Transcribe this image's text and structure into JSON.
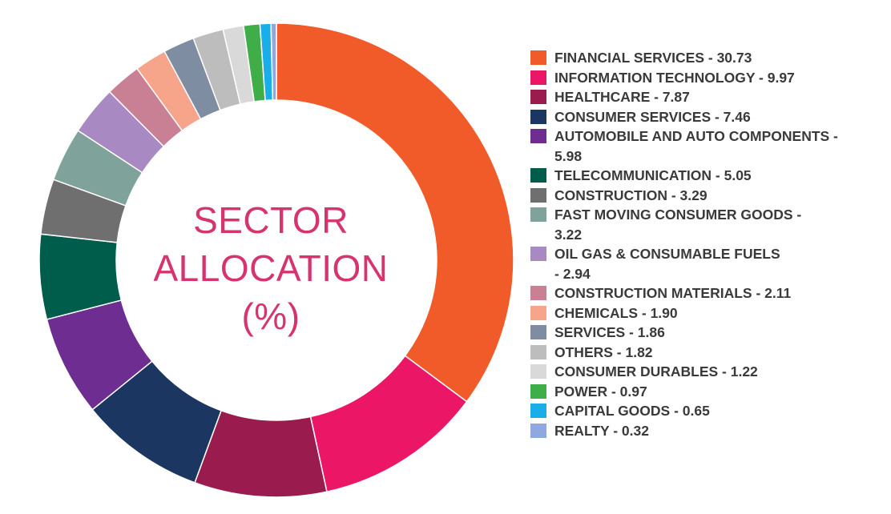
{
  "chart_data": {
    "type": "donut",
    "title_lines": [
      "SECTOR",
      "ALLOCATION",
      "(%)"
    ],
    "slices": [
      {
        "label": "FINANCIAL SERVICES - 30.73",
        "value": 30.73,
        "color": "#f15a29"
      },
      {
        "label": "INFORMATION TECHNOLOGY - 9.97",
        "value": 9.97,
        "color": "#ec1667"
      },
      {
        "label": "HEALTHCARE - 7.87",
        "value": 7.87,
        "color": "#9a1b4d"
      },
      {
        "label": "CONSUMER SERVICES - 7.46",
        "value": 7.46,
        "color": "#1b3660"
      },
      {
        "label": "AUTOMOBILE AND AUTO COMPONENTS - 5.98",
        "value": 5.98,
        "color": "#6e2d91"
      },
      {
        "label": "TELECOMMUNICATION - 5.05",
        "value": 5.05,
        "color": "#005c4b"
      },
      {
        "label": "CONSTRUCTION - 3.29",
        "value": 3.29,
        "color": "#6f6f6f"
      },
      {
        "label": "FAST MOVING CONSUMER GOODS - 3.22",
        "value": 3.22,
        "color": "#7fa39a"
      },
      {
        "label": "OIL GAS & CONSUMABLE FUELS - 2.94",
        "value": 2.94,
        "color": "#a889c2"
      },
      {
        "label": "CONSTRUCTION MATERIALS - 2.11",
        "value": 2.11,
        "color": "#c97f94"
      },
      {
        "label": "CHEMICALS - 1.90",
        "value": 1.9,
        "color": "#f6a58a"
      },
      {
        "label": "SERVICES - 1.86",
        "value": 1.86,
        "color": "#7f8da3"
      },
      {
        "label": "OTHERS - 1.82",
        "value": 1.82,
        "color": "#bdbdbd"
      },
      {
        "label": "CONSUMER DURABLES - 1.22",
        "value": 1.22,
        "color": "#d9d9d9"
      },
      {
        "label": "POWER - 0.97",
        "value": 0.97,
        "color": "#3fae49"
      },
      {
        "label": "CAPITAL GOODS - 0.65",
        "value": 0.65,
        "color": "#19aeea"
      },
      {
        "label": "REALTY - 0.32",
        "value": 0.32,
        "color": "#8fa9e0"
      }
    ]
  }
}
